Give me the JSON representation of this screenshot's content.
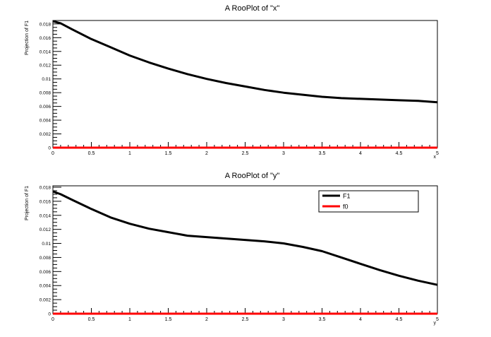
{
  "chart_data": [
    {
      "type": "line",
      "title": "A RooPlot of \"x\"",
      "xlabel": "x",
      "ylabel": "Projection of F1",
      "xlim": [
        0,
        5
      ],
      "ylim": [
        0,
        0.0185
      ],
      "xticks": [
        "0",
        "0.5",
        "1",
        "1.5",
        "2",
        "2.5",
        "3",
        "3.5",
        "4",
        "4.5",
        "5"
      ],
      "yticks": [
        "0",
        "0.002",
        "0.004",
        "0.006",
        "0.008",
        "0.01",
        "0.012",
        "0.014",
        "0.016",
        "0.018"
      ],
      "legend": null,
      "series": [
        {
          "name": "F1",
          "color": "#000000",
          "x": [
            0,
            0.1,
            0.25,
            0.5,
            0.75,
            1.0,
            1.25,
            1.5,
            1.75,
            2.0,
            2.25,
            2.5,
            2.75,
            3.0,
            3.25,
            3.5,
            3.75,
            4.0,
            4.25,
            4.5,
            4.75,
            5.0
          ],
          "y": [
            0.0184,
            0.0181,
            0.0172,
            0.0158,
            0.0146,
            0.0134,
            0.0124,
            0.0115,
            0.0107,
            0.01,
            0.0094,
            0.0089,
            0.0084,
            0.008,
            0.0077,
            0.0074,
            0.0072,
            0.0071,
            0.007,
            0.0069,
            0.0068,
            0.0066
          ]
        },
        {
          "name": "f0",
          "color": "#ff0000",
          "x": [
            0,
            5
          ],
          "y": [
            0,
            0
          ]
        }
      ]
    },
    {
      "type": "line",
      "title": "A RooPlot of \"y\"",
      "xlabel": "y",
      "ylabel": "Projection of F1",
      "xlim": [
        0,
        5
      ],
      "ylim": [
        0,
        0.0182
      ],
      "xticks": [
        "0",
        "0.5",
        "1",
        "1.5",
        "2",
        "2.5",
        "3",
        "3.5",
        "4",
        "4.5",
        "5"
      ],
      "yticks": [
        "0",
        "0.002",
        "0.004",
        "0.006",
        "0.008",
        "0.01",
        "0.012",
        "0.014",
        "0.016",
        "0.018"
      ],
      "legend": {
        "placement": "top-right",
        "entries": [
          "F1",
          "f0"
        ]
      },
      "series": [
        {
          "name": "F1",
          "color": "#000000",
          "x": [
            0,
            0.1,
            0.25,
            0.5,
            0.75,
            1.0,
            1.25,
            1.5,
            1.75,
            2.0,
            2.25,
            2.5,
            2.75,
            3.0,
            3.25,
            3.5,
            3.75,
            4.0,
            4.25,
            4.5,
            4.75,
            5.0
          ],
          "y": [
            0.0174,
            0.017,
            0.0162,
            0.0149,
            0.0137,
            0.0128,
            0.0121,
            0.0116,
            0.0111,
            0.0109,
            0.0107,
            0.0105,
            0.0103,
            0.01,
            0.0095,
            0.0089,
            0.008,
            0.0071,
            0.0062,
            0.0054,
            0.0047,
            0.0041
          ]
        },
        {
          "name": "f0",
          "color": "#ff0000",
          "x": [
            0,
            5
          ],
          "y": [
            0,
            0
          ]
        }
      ]
    }
  ]
}
